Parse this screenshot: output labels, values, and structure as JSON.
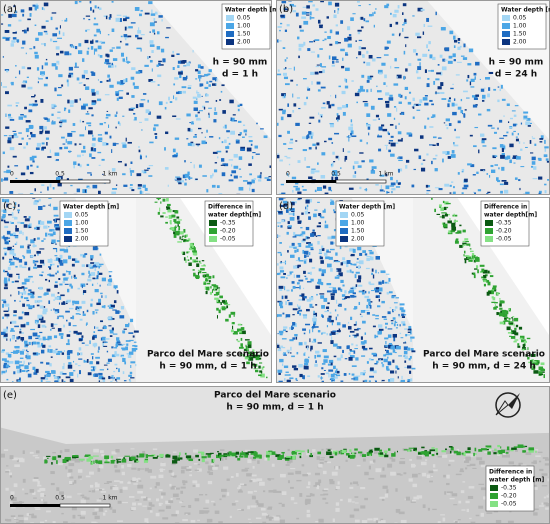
{
  "panels": [
    {
      "label": "(a)",
      "legends": [
        {
          "title": [
            "Water depth [m]"
          ],
          "items": [
            {
              "label": "0.05",
              "color": "#a3d6f4"
            },
            {
              "label": "1.00",
              "color": "#4ba6e6"
            },
            {
              "label": "1.50",
              "color": "#1f6cc2"
            },
            {
              "label": "2.00",
              "color": "#0c3580"
            }
          ]
        }
      ],
      "annotation": [
        "h = 90 mm",
        "d = 1 h"
      ],
      "scale": [
        "0",
        "0.5",
        "1 km"
      ]
    },
    {
      "label": "(b)",
      "legends": [
        {
          "title": [
            "Water depth [m]"
          ],
          "items": [
            {
              "label": "0.05",
              "color": "#a3d6f4"
            },
            {
              "label": "1.00",
              "color": "#4ba6e6"
            },
            {
              "label": "1.50",
              "color": "#1f6cc2"
            },
            {
              "label": "2.00",
              "color": "#0c3580"
            }
          ]
        }
      ],
      "annotation": [
        "h = 90 mm",
        "d = 24 h"
      ],
      "scale": [
        "0",
        "0.5",
        "1 km"
      ]
    },
    {
      "label": "(c)",
      "legends": [
        {
          "title": [
            "Water depth [m]"
          ],
          "items": [
            {
              "label": "0.05",
              "color": "#a3d6f4"
            },
            {
              "label": "1.00",
              "color": "#4ba6e6"
            },
            {
              "label": "1.50",
              "color": "#1f6cc2"
            },
            {
              "label": "2.00",
              "color": "#0c3580"
            }
          ]
        },
        {
          "title": [
            "Difference in",
            "water depth[m]"
          ],
          "items": [
            {
              "label": "-0.35",
              "color": "#0b5a12"
            },
            {
              "label": "-0.20",
              "color": "#2fa332"
            },
            {
              "label": "-0.05",
              "color": "#84e184"
            }
          ]
        }
      ],
      "annotation": [
        "Parco del Mare scenario",
        "h = 90 mm, d = 1 h"
      ]
    },
    {
      "label": "(d)",
      "legends": [
        {
          "title": [
            "Water depth [m]"
          ],
          "items": [
            {
              "label": "0.05",
              "color": "#a3d6f4"
            },
            {
              "label": "1.00",
              "color": "#4ba6e6"
            },
            {
              "label": "1.50",
              "color": "#1f6cc2"
            },
            {
              "label": "2.00",
              "color": "#0c3580"
            }
          ]
        },
        {
          "title": [
            "Difference in",
            "water depth[m]"
          ],
          "items": [
            {
              "label": "-0.35",
              "color": "#0b5a12"
            },
            {
              "label": "-0.20",
              "color": "#2fa332"
            },
            {
              "label": "-0.05",
              "color": "#84e184"
            }
          ]
        }
      ],
      "annotation": [
        "Parco del Mare scenario",
        "h = 90 mm, d = 24 h"
      ]
    },
    {
      "label": "(e)",
      "legends": [
        {
          "title": [
            "Difference in",
            "water depth [m]"
          ],
          "items": [
            {
              "label": "-0.35",
              "color": "#0b5a12"
            },
            {
              "label": "-0.20",
              "color": "#2fa332"
            },
            {
              "label": "-0.05",
              "color": "#84e184"
            }
          ]
        }
      ],
      "annotation": [
        "Parco del Mare scenario",
        "h = 90 mm, d = 1 h"
      ],
      "scale": [
        "0",
        "0.5",
        "1 km"
      ]
    }
  ]
}
